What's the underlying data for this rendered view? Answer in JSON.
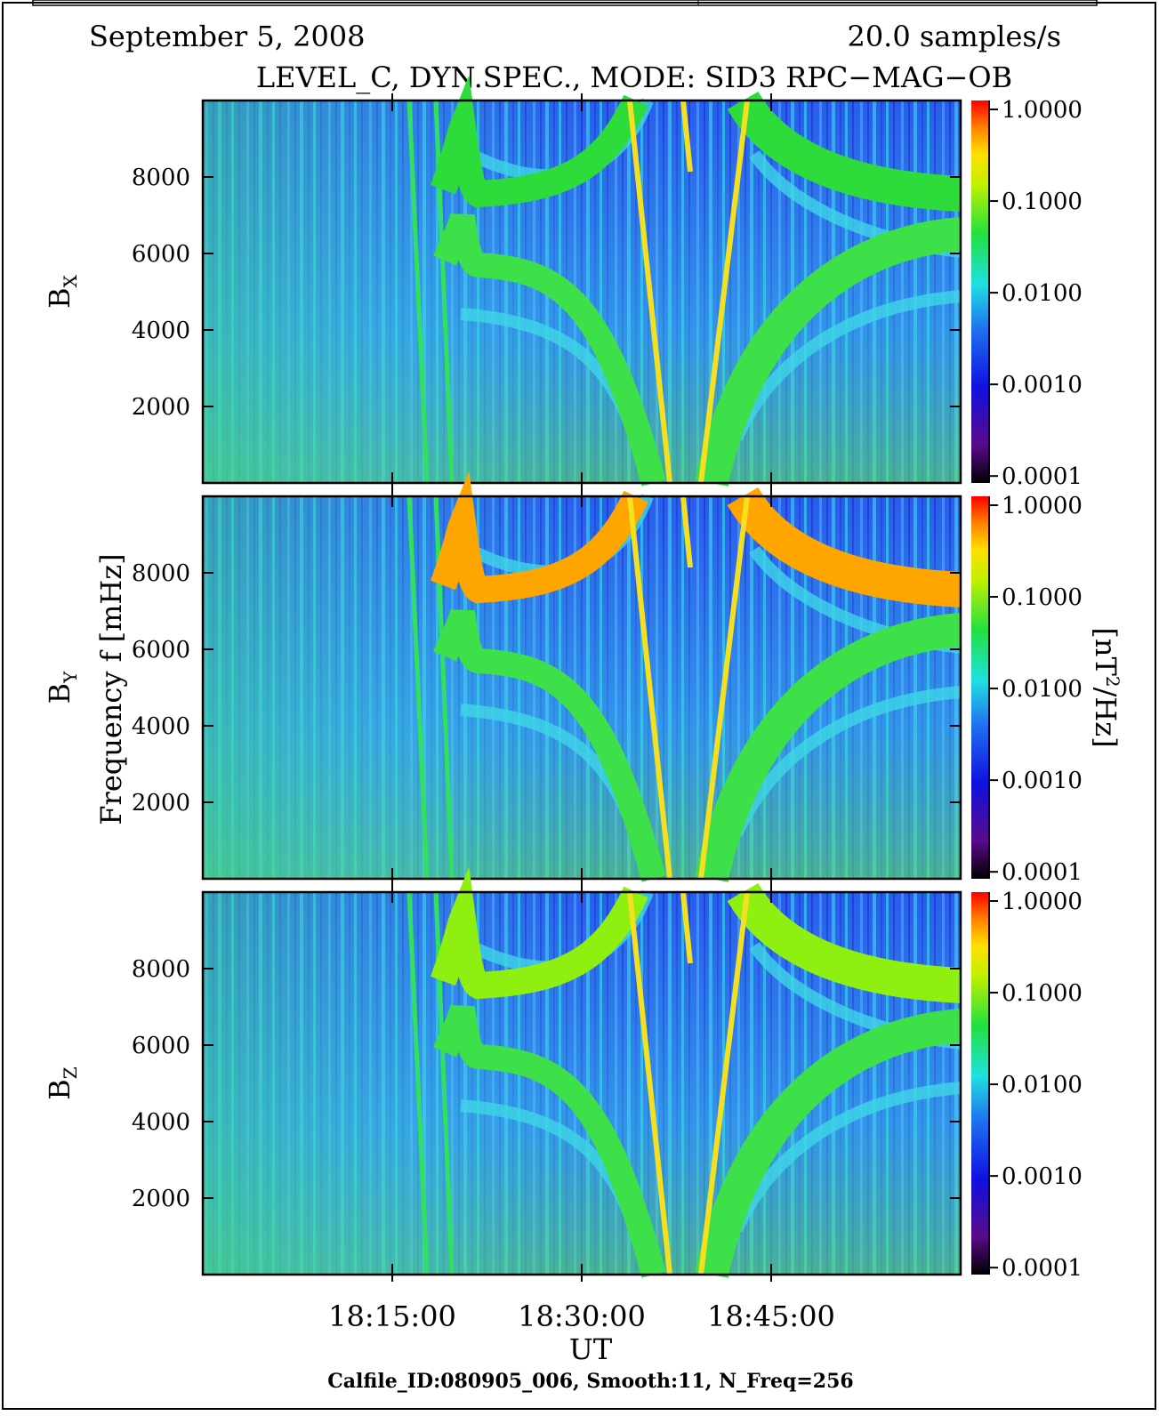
{
  "chart_data": {
    "type": "spectrogram",
    "date": "September 5, 2008",
    "sample_rate": "20.0 samples/s",
    "title": "LEVEL_C, DYN.SPEC., MODE: SID3 RPC−MAG−OB",
    "ylabel": "Frequency f [mHz]",
    "xlabel": "UT",
    "footer": "Calfile_ID:080905_006, Smooth:11, N_Freq=256",
    "colorbar_label": {
      "prefix": "[nT",
      "sup": "2",
      "suffix": "/Hz]"
    },
    "xlim": [
      1080,
      1140
    ],
    "xticks": [
      {
        "value": 1095,
        "label": "18:15:00"
      },
      {
        "value": 1110,
        "label": "18:30:00"
      },
      {
        "value": 1125,
        "label": "18:45:00"
      }
    ],
    "ylim": [
      0,
      10000
    ],
    "yticks": [
      2000,
      4000,
      6000,
      8000
    ],
    "clog": true,
    "clim": [
      8.4e-05,
      1.25
    ],
    "cticks": [
      {
        "value": 1,
        "label": "1.0000"
      },
      {
        "value": 0.1,
        "label": "0.1000"
      },
      {
        "value": 0.01,
        "label": "0.0100"
      },
      {
        "value": 0.001,
        "label": "0.0010"
      },
      {
        "value": 0.0001,
        "label": "0.0001"
      }
    ],
    "panels": [
      {
        "component": "B",
        "sub": "X",
        "band_color": "#2ddc3a"
      },
      {
        "component": "B",
        "sub": "Y",
        "band_color": "#ffa500"
      },
      {
        "component": "B",
        "sub": "Z",
        "band_color": "#8fef10"
      }
    ]
  }
}
